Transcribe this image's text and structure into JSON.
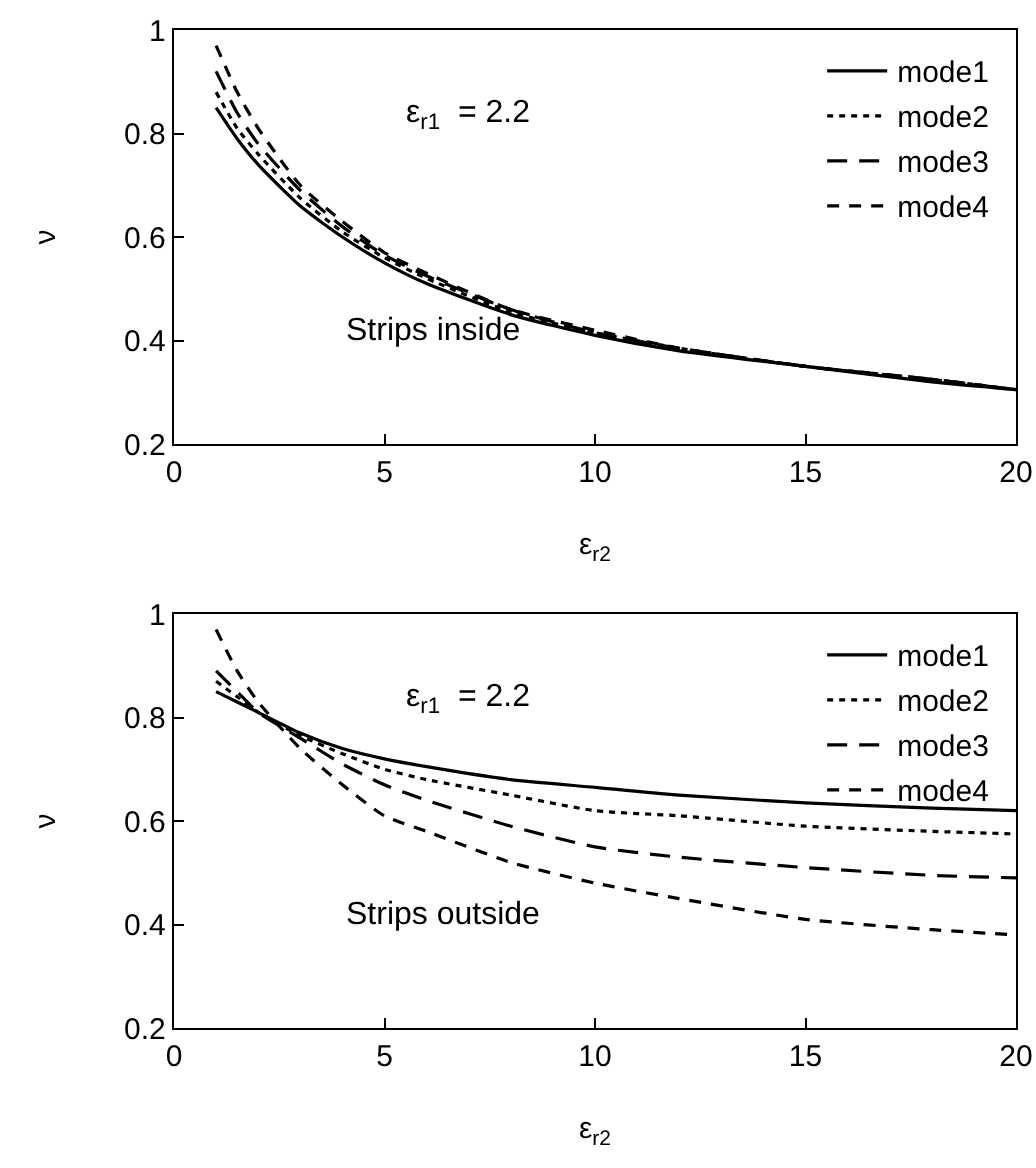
{
  "chart_data": [
    {
      "type": "line",
      "xlabel": "ε$_{r2}$",
      "ylabel": "ν",
      "annotations": [
        "ε$_{r1}$  = 2.2",
        "Strips inside"
      ],
      "x": [
        1,
        1.5,
        2,
        3,
        4,
        5,
        6,
        8,
        10,
        12,
        15,
        18,
        20
      ],
      "xlim": [
        0,
        20
      ],
      "xticks": [
        0,
        5,
        10,
        15,
        20
      ],
      "ylim": [
        0.2,
        1
      ],
      "yticks": [
        0.2,
        0.4,
        0.6,
        0.8,
        1
      ],
      "grid": false,
      "legend": "top right",
      "marker": "none",
      "series": [
        {
          "name": "mode1",
          "color": "#000000",
          "line_style": "solid",
          "values": [
            0.85,
            0.79,
            0.74,
            0.66,
            0.6,
            0.55,
            0.51,
            0.45,
            0.41,
            0.38,
            0.35,
            0.32,
            0.305
          ]
        },
        {
          "name": "mode2",
          "color": "#000000",
          "line_style": "dashed",
          "values": [
            0.88,
            0.81,
            0.76,
            0.675,
            0.61,
            0.56,
            0.52,
            0.455,
            0.415,
            0.385,
            0.35,
            0.325,
            0.305
          ]
        },
        {
          "name": "mode3",
          "color": "#000000",
          "line_style": "longdash",
          "values": [
            0.92,
            0.84,
            0.78,
            0.69,
            0.62,
            0.565,
            0.525,
            0.46,
            0.415,
            0.385,
            0.35,
            0.325,
            0.305
          ]
        },
        {
          "name": "mode4",
          "color": "#000000",
          "line_style": "dash",
          "values": [
            0.97,
            0.88,
            0.81,
            0.7,
            0.63,
            0.57,
            0.53,
            0.46,
            0.42,
            0.385,
            0.35,
            0.325,
            0.305
          ]
        }
      ]
    },
    {
      "type": "line",
      "xlabel": "ε$_{r2}$",
      "ylabel": "ν",
      "annotations": [
        "ε$_{r1}$  = 2.2",
        "Strips outside"
      ],
      "x": [
        1,
        1.5,
        2,
        3,
        4,
        5,
        6,
        8,
        10,
        12,
        15,
        18,
        20
      ],
      "xlim": [
        0,
        20
      ],
      "xticks": [
        0,
        5,
        10,
        15,
        20
      ],
      "ylim": [
        0.2,
        1
      ],
      "yticks": [
        0.2,
        0.4,
        0.6,
        0.8,
        1
      ],
      "grid": false,
      "legend": "top right",
      "marker": "none",
      "series": [
        {
          "name": "mode1",
          "color": "#000000",
          "line_style": "solid",
          "values": [
            0.85,
            0.83,
            0.81,
            0.77,
            0.74,
            0.72,
            0.705,
            0.68,
            0.665,
            0.65,
            0.635,
            0.625,
            0.62
          ]
        },
        {
          "name": "mode2",
          "color": "#000000",
          "line_style": "dashed",
          "values": [
            0.87,
            0.84,
            0.81,
            0.765,
            0.73,
            0.7,
            0.68,
            0.65,
            0.62,
            0.61,
            0.59,
            0.58,
            0.575
          ]
        },
        {
          "name": "mode3",
          "color": "#000000",
          "line_style": "longdash",
          "values": [
            0.89,
            0.85,
            0.81,
            0.76,
            0.71,
            0.67,
            0.64,
            0.59,
            0.55,
            0.53,
            0.51,
            0.495,
            0.49
          ]
        },
        {
          "name": "mode4",
          "color": "#000000",
          "line_style": "dash",
          "values": [
            0.97,
            0.89,
            0.83,
            0.74,
            0.67,
            0.61,
            0.58,
            0.52,
            0.48,
            0.45,
            0.41,
            0.39,
            0.38
          ]
        }
      ]
    }
  ]
}
